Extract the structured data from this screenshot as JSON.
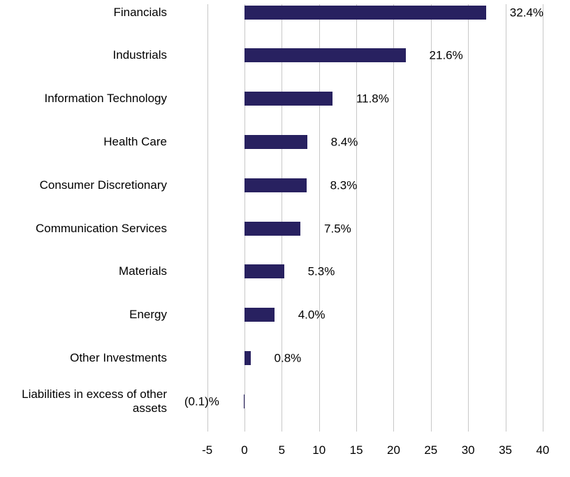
{
  "chart_data": {
    "type": "bar",
    "orientation": "horizontal",
    "title": "",
    "xlabel": "",
    "ylabel": "",
    "grid": true,
    "legend": false,
    "xlim": [
      -5,
      40
    ],
    "categories": [
      "Financials",
      "Industrials",
      "Information Technology",
      "Health Care",
      "Consumer Discretionary",
      "Communication Services",
      "Materials",
      "Energy",
      "Other Investments",
      "Liabilities in excess of other assets"
    ],
    "values": [
      32.4,
      21.6,
      11.8,
      8.4,
      8.3,
      7.5,
      5.3,
      4.0,
      0.8,
      -0.1
    ],
    "value_labels": [
      "32.4%",
      "21.6%",
      "11.8%",
      "8.4%",
      "8.3%",
      "7.5%",
      "5.3%",
      "4.0%",
      "0.8%",
      "(0.1)%"
    ],
    "x_ticks": [
      -5,
      0,
      5,
      10,
      15,
      20,
      25,
      30,
      35,
      40
    ],
    "x_tick_labels": [
      "-5",
      "0",
      "5",
      "10",
      "15",
      "20",
      "25",
      "30",
      "35",
      "40"
    ],
    "colors": {
      "bar": "#282160",
      "gridline": "#c8c8c8",
      "text": "#000000",
      "background": "#ffffff"
    }
  }
}
